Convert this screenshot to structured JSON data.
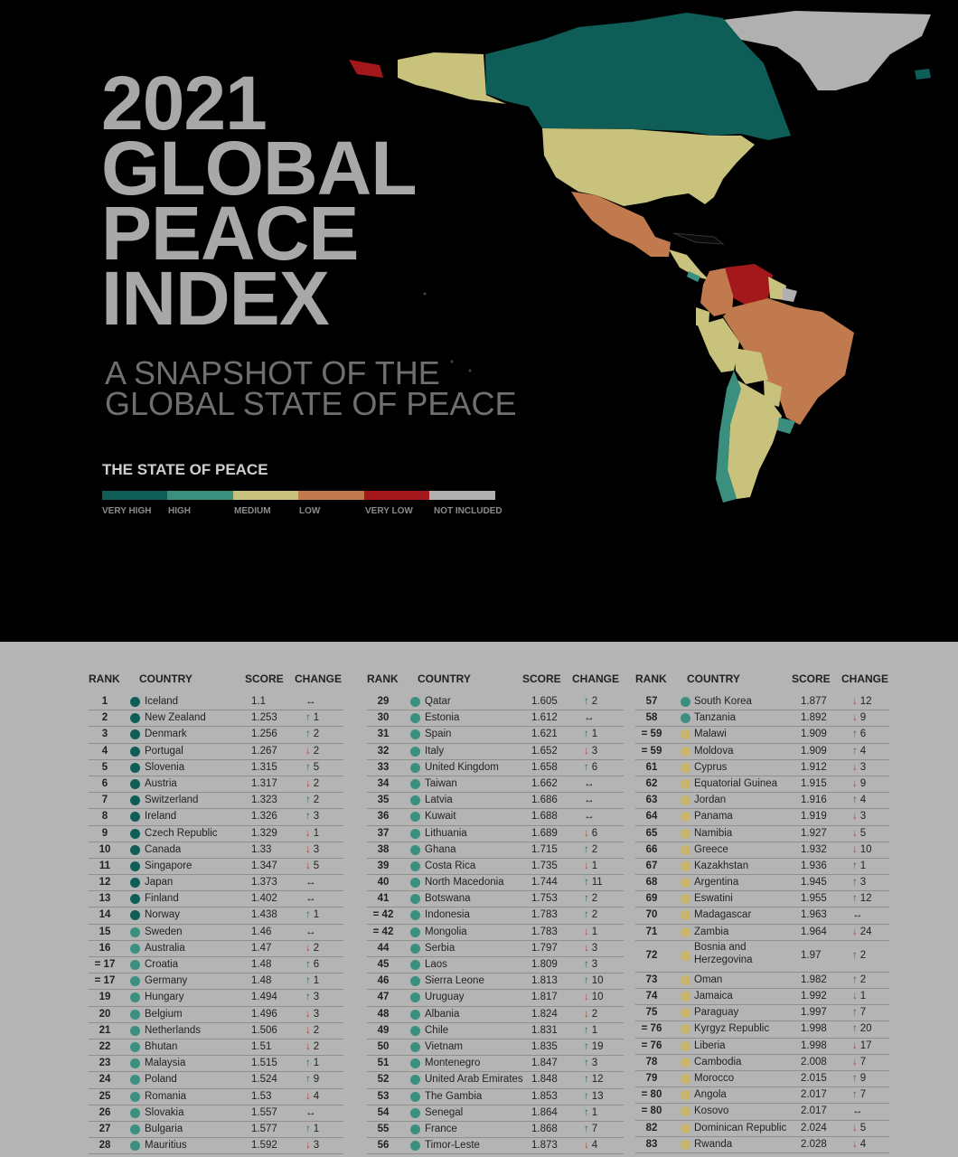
{
  "hero": {
    "title_lines": [
      "2021",
      "GLOBAL",
      "PEACE",
      "INDEX"
    ],
    "subtitle_lines": [
      "A SNAPSHOT OF THE",
      "GLOBAL STATE OF PEACE"
    ]
  },
  "legend": {
    "title": "THE STATE OF PEACE",
    "items": [
      {
        "label": "VERY HIGH",
        "color": "#0e5e57"
      },
      {
        "label": "HIGH",
        "color": "#3a8f7f"
      },
      {
        "label": "MEDIUM",
        "color": "#c8c27c"
      },
      {
        "label": "LOW",
        "color": "#c07a4e"
      },
      {
        "label": "VERY LOW",
        "color": "#a3191b"
      },
      {
        "label": "NOT INCLUDED",
        "color": "#b0b0b0"
      }
    ]
  },
  "colors": {
    "very_high": "#0e5e57",
    "high": "#3a8f7f",
    "medium": "#c8b46a"
  },
  "table": {
    "headers": {
      "rank": "RANK",
      "country": "COUNTRY",
      "score": "SCORE",
      "change": "CHANGE"
    },
    "columns": [
      [
        {
          "rank": "1",
          "country": "Iceland",
          "score": "1.1",
          "dir": "same",
          "change": "",
          "level": "very_high"
        },
        {
          "rank": "2",
          "country": "New Zealand",
          "score": "1.253",
          "dir": "up",
          "change": "1",
          "level": "very_high"
        },
        {
          "rank": "3",
          "country": "Denmark",
          "score": "1.256",
          "dir": "up",
          "change": "2",
          "level": "very_high"
        },
        {
          "rank": "4",
          "country": "Portugal",
          "score": "1.267",
          "dir": "down",
          "change": "2",
          "level": "very_high"
        },
        {
          "rank": "5",
          "country": "Slovenia",
          "score": "1.315",
          "dir": "up",
          "change": "5",
          "level": "very_high"
        },
        {
          "rank": "6",
          "country": "Austria",
          "score": "1.317",
          "dir": "down",
          "change": "2",
          "level": "very_high"
        },
        {
          "rank": "7",
          "country": "Switzerland",
          "score": "1.323",
          "dir": "up",
          "change": "2",
          "level": "very_high"
        },
        {
          "rank": "8",
          "country": "Ireland",
          "score": "1.326",
          "dir": "up",
          "change": "3",
          "level": "very_high"
        },
        {
          "rank": "9",
          "country": "Czech Republic",
          "score": "1.329",
          "dir": "down",
          "change": "1",
          "level": "very_high"
        },
        {
          "rank": "10",
          "country": "Canada",
          "score": "1.33",
          "dir": "down",
          "change": "3",
          "level": "very_high"
        },
        {
          "rank": "11",
          "country": "Singapore",
          "score": "1.347",
          "dir": "down",
          "change": "5",
          "level": "very_high"
        },
        {
          "rank": "12",
          "country": "Japan",
          "score": "1.373",
          "dir": "same",
          "change": "",
          "level": "very_high"
        },
        {
          "rank": "13",
          "country": "Finland",
          "score": "1.402",
          "dir": "same",
          "change": "",
          "level": "very_high"
        },
        {
          "rank": "14",
          "country": "Norway",
          "score": "1.438",
          "dir": "up",
          "change": "1",
          "level": "very_high"
        },
        {
          "rank": "15",
          "country": "Sweden",
          "score": "1.46",
          "dir": "same",
          "change": "",
          "level": "high"
        },
        {
          "rank": "16",
          "country": "Australia",
          "score": "1.47",
          "dir": "down",
          "change": "2",
          "level": "high"
        },
        {
          "rank": "= 17",
          "country": "Croatia",
          "score": "1.48",
          "dir": "up",
          "change": "6",
          "level": "high"
        },
        {
          "rank": "= 17",
          "country": "Germany",
          "score": "1.48",
          "dir": "up",
          "change": "1",
          "level": "high"
        },
        {
          "rank": "19",
          "country": "Hungary",
          "score": "1.494",
          "dir": "up",
          "change": "3",
          "level": "high"
        },
        {
          "rank": "20",
          "country": "Belgium",
          "score": "1.496",
          "dir": "down",
          "change": "3",
          "level": "high"
        },
        {
          "rank": "21",
          "country": "Netherlands",
          "score": "1.506",
          "dir": "down",
          "change": "2",
          "level": "high"
        },
        {
          "rank": "22",
          "country": "Bhutan",
          "score": "1.51",
          "dir": "down",
          "change": "2",
          "level": "high"
        },
        {
          "rank": "23",
          "country": "Malaysia",
          "score": "1.515",
          "dir": "up",
          "change": "1",
          "level": "high"
        },
        {
          "rank": "24",
          "country": "Poland",
          "score": "1.524",
          "dir": "up",
          "change": "9",
          "level": "high"
        },
        {
          "rank": "25",
          "country": "Romania",
          "score": "1.53",
          "dir": "down",
          "change": "4",
          "level": "high"
        },
        {
          "rank": "26",
          "country": "Slovakia",
          "score": "1.557",
          "dir": "same",
          "change": "",
          "level": "high"
        },
        {
          "rank": "27",
          "country": "Bulgaria",
          "score": "1.577",
          "dir": "up",
          "change": "1",
          "level": "high"
        },
        {
          "rank": "28",
          "country": "Mauritius",
          "score": "1.592",
          "dir": "down",
          "change": "3",
          "level": "high"
        }
      ],
      [
        {
          "rank": "29",
          "country": "Qatar",
          "score": "1.605",
          "dir": "up",
          "change": "2",
          "level": "high"
        },
        {
          "rank": "30",
          "country": "Estonia",
          "score": "1.612",
          "dir": "same",
          "change": "",
          "level": "high"
        },
        {
          "rank": "31",
          "country": "Spain",
          "score": "1.621",
          "dir": "up",
          "change": "1",
          "level": "high"
        },
        {
          "rank": "32",
          "country": "Italy",
          "score": "1.652",
          "dir": "down",
          "change": "3",
          "level": "high"
        },
        {
          "rank": "33",
          "country": "United Kingdom",
          "score": "1.658",
          "dir": "up",
          "change": "6",
          "level": "high"
        },
        {
          "rank": "34",
          "country": "Taiwan",
          "score": "1.662",
          "dir": "same",
          "change": "",
          "level": "high"
        },
        {
          "rank": "35",
          "country": "Latvia",
          "score": "1.686",
          "dir": "same",
          "change": "",
          "level": "high"
        },
        {
          "rank": "36",
          "country": "Kuwait",
          "score": "1.688",
          "dir": "same",
          "change": "",
          "level": "high"
        },
        {
          "rank": "37",
          "country": "Lithuania",
          "score": "1.689",
          "dir": "down",
          "change": "6",
          "level": "high"
        },
        {
          "rank": "38",
          "country": "Ghana",
          "score": "1.715",
          "dir": "up",
          "change": "2",
          "level": "high"
        },
        {
          "rank": "39",
          "country": "Costa Rica",
          "score": "1.735",
          "dir": "down",
          "change": "1",
          "level": "high"
        },
        {
          "rank": "40",
          "country": "North Macedonia",
          "score": "1.744",
          "dir": "up",
          "change": "11",
          "level": "high"
        },
        {
          "rank": "41",
          "country": "Botswana",
          "score": "1.753",
          "dir": "up",
          "change": "2",
          "level": "high"
        },
        {
          "rank": "= 42",
          "country": "Indonesia",
          "score": "1.783",
          "dir": "up",
          "change": "2",
          "level": "high"
        },
        {
          "rank": "= 42",
          "country": "Mongolia",
          "score": "1.783",
          "dir": "down",
          "change": "1",
          "level": "high"
        },
        {
          "rank": "44",
          "country": "Serbia",
          "score": "1.797",
          "dir": "down",
          "change": "3",
          "level": "high"
        },
        {
          "rank": "45",
          "country": "Laos",
          "score": "1.809",
          "dir": "up",
          "change": "3",
          "level": "high"
        },
        {
          "rank": "46",
          "country": "Sierra Leone",
          "score": "1.813",
          "dir": "up",
          "change": "10",
          "level": "high"
        },
        {
          "rank": "47",
          "country": "Uruguay",
          "score": "1.817",
          "dir": "down",
          "change": "10",
          "level": "high"
        },
        {
          "rank": "48",
          "country": "Albania",
          "score": "1.824",
          "dir": "down",
          "change": "2",
          "level": "high"
        },
        {
          "rank": "49",
          "country": "Chile",
          "score": "1.831",
          "dir": "up",
          "change": "1",
          "level": "high"
        },
        {
          "rank": "50",
          "country": "Vietnam",
          "score": "1.835",
          "dir": "up",
          "change": "19",
          "level": "high"
        },
        {
          "rank": "51",
          "country": "Montenegro",
          "score": "1.847",
          "dir": "up",
          "change": "3",
          "level": "high"
        },
        {
          "rank": "52",
          "country": "United Arab Emirates",
          "score": "1.848",
          "dir": "up",
          "change": "12",
          "level": "high"
        },
        {
          "rank": "53",
          "country": "The Gambia",
          "score": "1.853",
          "dir": "up",
          "change": "13",
          "level": "high"
        },
        {
          "rank": "54",
          "country": "Senegal",
          "score": "1.864",
          "dir": "up",
          "change": "1",
          "level": "high"
        },
        {
          "rank": "55",
          "country": "France",
          "score": "1.868",
          "dir": "up",
          "change": "7",
          "level": "high"
        },
        {
          "rank": "56",
          "country": "Timor-Leste",
          "score": "1.873",
          "dir": "down",
          "change": "4",
          "level": "high"
        }
      ],
      [
        {
          "rank": "57",
          "country": "South Korea",
          "score": "1.877",
          "dir": "down",
          "change": "12",
          "level": "high"
        },
        {
          "rank": "58",
          "country": "Tanzania",
          "score": "1.892",
          "dir": "down",
          "change": "9",
          "level": "high"
        },
        {
          "rank": "= 59",
          "country": "Malawi",
          "score": "1.909",
          "dir": "up",
          "change": "6",
          "level": "medium"
        },
        {
          "rank": "= 59",
          "country": "Moldova",
          "score": "1.909",
          "dir": "up",
          "change": "4",
          "level": "medium"
        },
        {
          "rank": "61",
          "country": "Cyprus",
          "score": "1.912",
          "dir": "down",
          "change": "3",
          "level": "medium"
        },
        {
          "rank": "62",
          "country": "Equatorial Guinea",
          "score": "1.915",
          "dir": "down",
          "change": "9",
          "level": "medium"
        },
        {
          "rank": "63",
          "country": "Jordan",
          "score": "1.916",
          "dir": "up",
          "change": "4",
          "level": "medium"
        },
        {
          "rank": "64",
          "country": "Panama",
          "score": "1.919",
          "dir": "down",
          "change": "3",
          "level": "medium"
        },
        {
          "rank": "65",
          "country": "Namibia",
          "score": "1.927",
          "dir": "down",
          "change": "5",
          "level": "medium"
        },
        {
          "rank": "66",
          "country": "Greece",
          "score": "1.932",
          "dir": "down",
          "change": "10",
          "level": "medium"
        },
        {
          "rank": "67",
          "country": "Kazakhstan",
          "score": "1.936",
          "dir": "up",
          "change": "1",
          "level": "medium"
        },
        {
          "rank": "68",
          "country": "Argentina",
          "score": "1.945",
          "dir": "up",
          "change": "3",
          "level": "medium"
        },
        {
          "rank": "69",
          "country": "Eswatini",
          "score": "1.955",
          "dir": "up",
          "change": "12",
          "level": "medium"
        },
        {
          "rank": "70",
          "country": "Madagascar",
          "score": "1.963",
          "dir": "same",
          "change": "",
          "level": "medium"
        },
        {
          "rank": "71",
          "country": "Zambia",
          "score": "1.964",
          "dir": "down",
          "change": "24",
          "level": "medium"
        },
        {
          "rank": "72",
          "country": "Bosnia and Herzegovina",
          "score": "1.97",
          "dir": "up",
          "change": "2",
          "level": "medium",
          "tall": true
        },
        {
          "rank": "73",
          "country": "Oman",
          "score": "1.982",
          "dir": "up",
          "change": "2",
          "level": "medium"
        },
        {
          "rank": "74",
          "country": "Jamaica",
          "score": "1.992",
          "dir": "down",
          "change": "1",
          "level": "medium"
        },
        {
          "rank": "75",
          "country": "Paraguay",
          "score": "1.997",
          "dir": "up",
          "change": "7",
          "level": "medium"
        },
        {
          "rank": "= 76",
          "country": "Kyrgyz Republic",
          "score": "1.998",
          "dir": "up",
          "change": "20",
          "level": "medium"
        },
        {
          "rank": "= 76",
          "country": "Liberia",
          "score": "1.998",
          "dir": "down",
          "change": "17",
          "level": "medium"
        },
        {
          "rank": "78",
          "country": "Cambodia",
          "score": "2.008",
          "dir": "down",
          "change": "7",
          "level": "medium"
        },
        {
          "rank": "79",
          "country": "Morocco",
          "score": "2.015",
          "dir": "up",
          "change": "9",
          "level": "medium"
        },
        {
          "rank": "= 80",
          "country": "Angola",
          "score": "2.017",
          "dir": "up",
          "change": "7",
          "level": "medium"
        },
        {
          "rank": "= 80",
          "country": "Kosovo",
          "score": "2.017",
          "dir": "same",
          "change": "",
          "level": "medium"
        },
        {
          "rank": "82",
          "country": "Dominican Republic",
          "score": "2.024",
          "dir": "down",
          "change": "5",
          "level": "medium"
        },
        {
          "rank": "83",
          "country": "Rwanda",
          "score": "2.028",
          "dir": "down",
          "change": "4",
          "level": "medium"
        }
      ]
    ]
  }
}
